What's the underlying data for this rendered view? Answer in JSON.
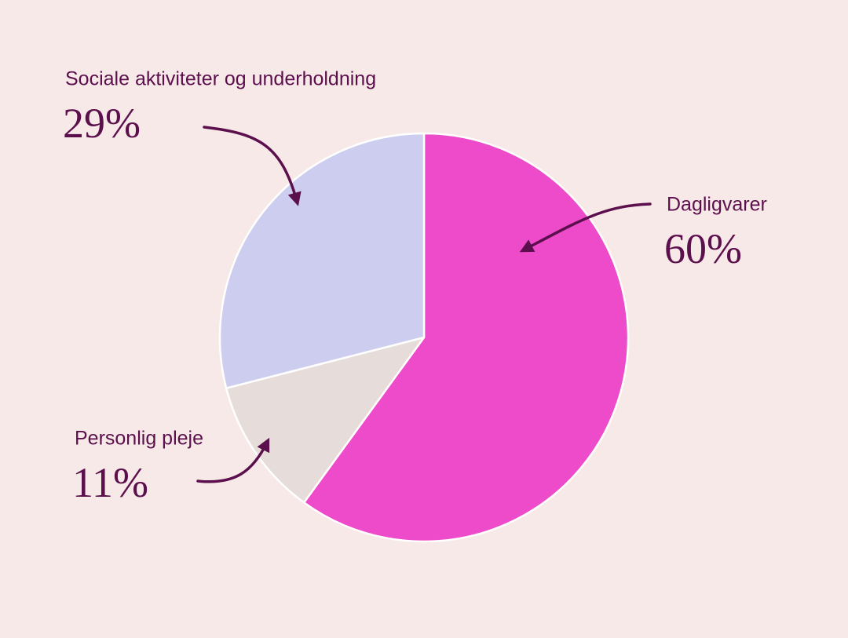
{
  "chart_data": {
    "type": "pie",
    "categories": [
      "Dagligvarer",
      "Personlig pleje",
      "Sociale aktiviteter og underholdning"
    ],
    "values": [
      60,
      11,
      29
    ],
    "value_labels": [
      "60%",
      "11%",
      "29%"
    ],
    "colors": [
      "#ee4bcb",
      "#e6dcd9",
      "#cdcdef"
    ]
  }
}
